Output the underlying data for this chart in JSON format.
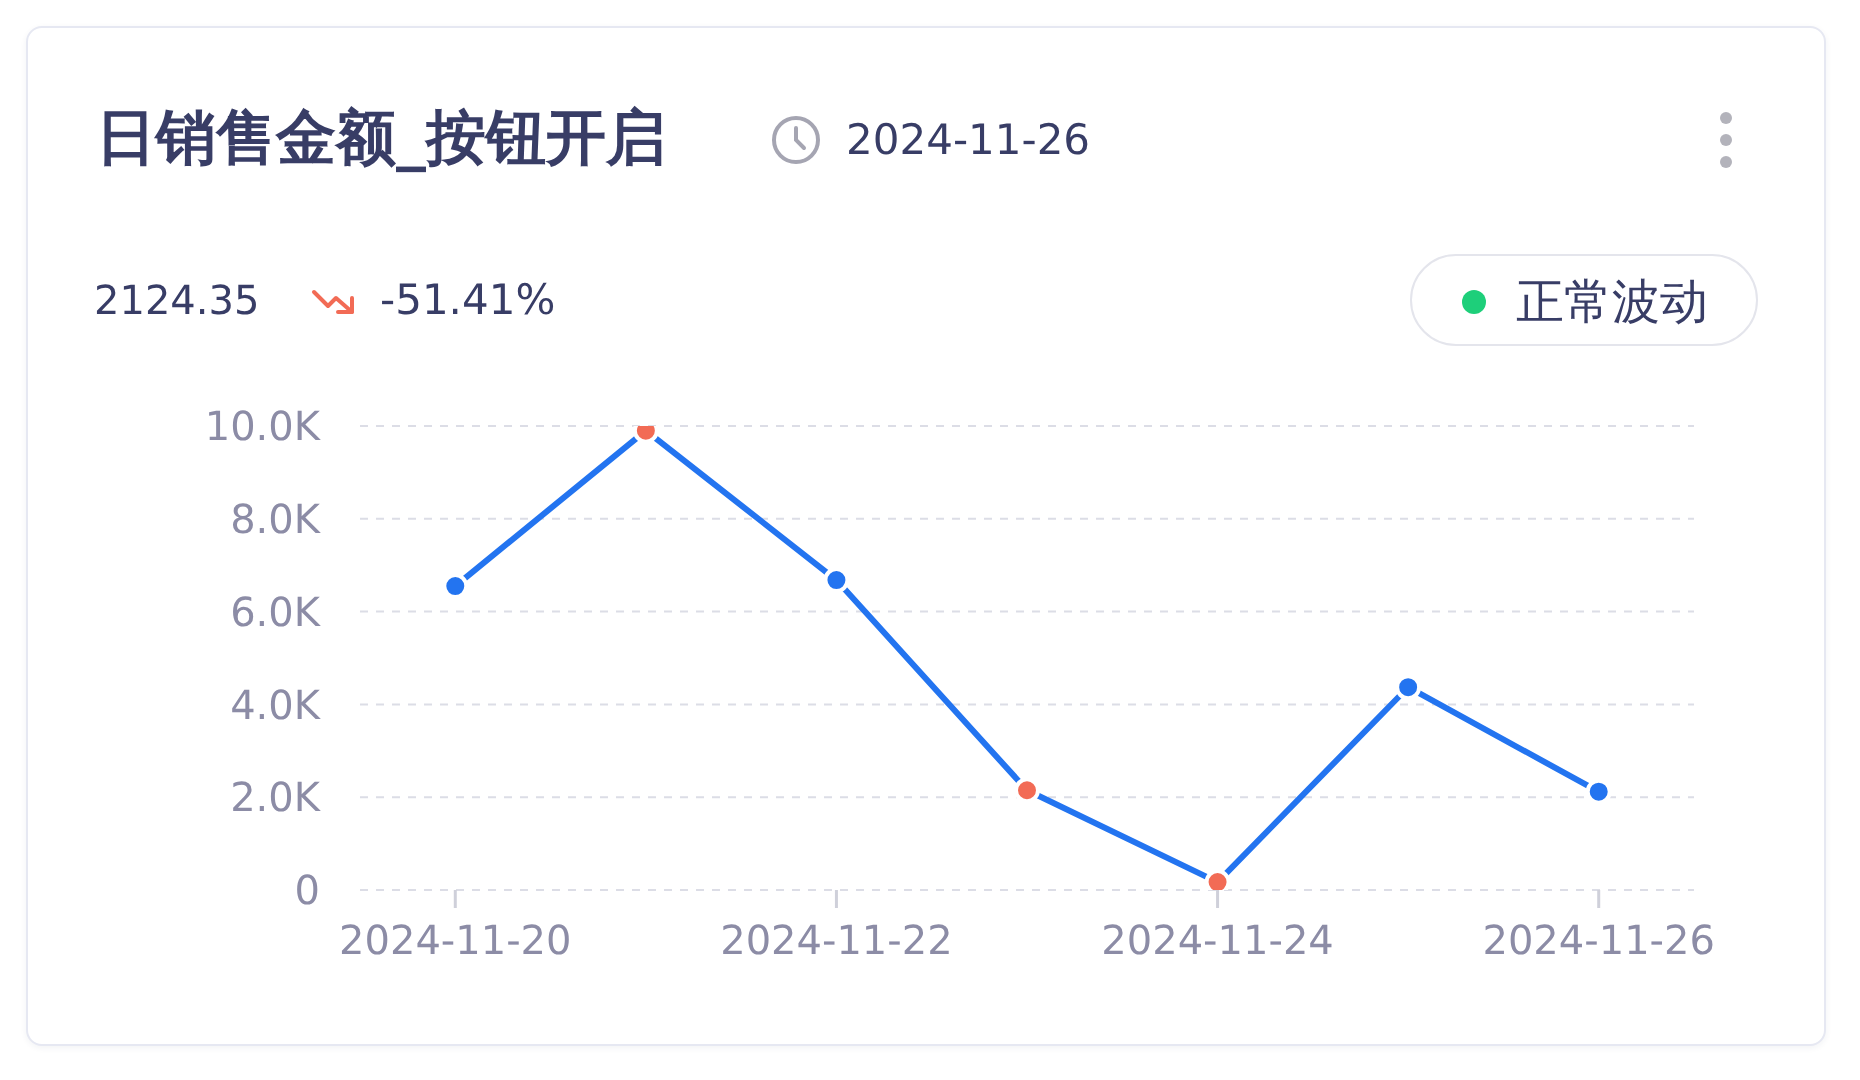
{
  "chart_data": {
    "type": "line",
    "title": "日销售金额_按钮开启",
    "subtitle": "2024-11-26",
    "annotations": [
      "2124.35",
      "-51.41%",
      "正常波动"
    ],
    "x": [
      "2024-11-20",
      "2024-11-21",
      "2024-11-22",
      "2024-11-23",
      "2024-11-24",
      "2024-11-25",
      "2024-11-26"
    ],
    "xlim": [
      "2024-11-19T12:00",
      "2024-11-26T12:00"
    ],
    "xticks": [
      "2024-11-20",
      "2024-11-22",
      "2024-11-24",
      "2024-11-26"
    ],
    "ylim": [
      0,
      10000
    ],
    "yticks": [
      0,
      {
        "value": 2000,
        "label": "2.0K"
      },
      {
        "value": 4000,
        "label": "4.0K"
      },
      {
        "value": 6000,
        "label": "6.0K"
      },
      {
        "value": 8000,
        "label": "8.0K"
      },
      {
        "value": 10000,
        "label": "10.0K"
      }
    ],
    "grid": "y",
    "marker": "circle",
    "line_style": "solid",
    "series": [
      {
        "color": "#2374f0",
        "colors": [
          "#2374f0",
          "#f26b55",
          "#2374f0",
          "#f26b55",
          "#f26b55",
          "#2374f0",
          "#2374f0"
        ],
        "values": [
          6550,
          9900,
          6680,
          2150,
          170,
          4370,
          2120
        ]
      }
    ]
  }
}
